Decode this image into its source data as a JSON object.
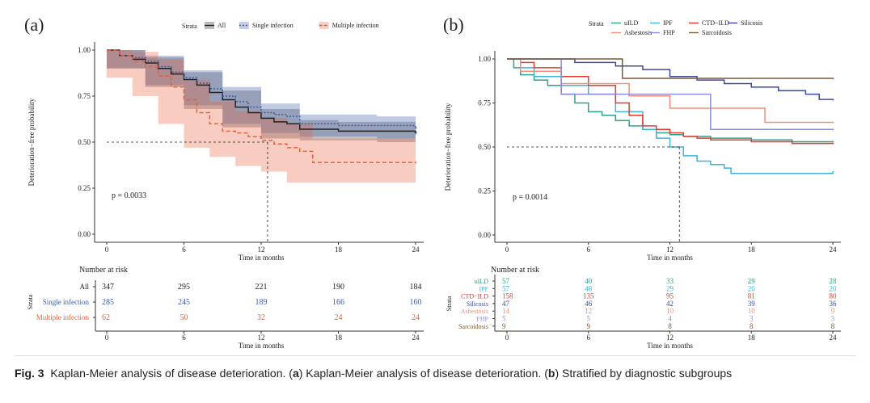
{
  "chart_data": [
    {
      "panel": "(a)",
      "type": "line",
      "subtype": "kaplan-meier",
      "xlabel": "Time in months",
      "ylabel": "Deterioration−free probability",
      "xlim": [
        0,
        24
      ],
      "ylim": [
        0,
        1
      ],
      "xticks": [
        "0",
        "6",
        "12",
        "18",
        "24"
      ],
      "yticks": [
        "0.00",
        "0.25",
        "0.50",
        "0.75",
        "1.00"
      ],
      "legend_title": "Strata",
      "pvalue": "p = 0.0033",
      "median_line": {
        "y": 0.5,
        "x": 12.5
      },
      "series": [
        {
          "name": "All",
          "color": "#222222",
          "dash": "solid",
          "points": [
            [
              0,
              1.0
            ],
            [
              1,
              0.97
            ],
            [
              2,
              0.95
            ],
            [
              3,
              0.93
            ],
            [
              4,
              0.9
            ],
            [
              5,
              0.87
            ],
            [
              6,
              0.84
            ],
            [
              7,
              0.81
            ],
            [
              8,
              0.77
            ],
            [
              9,
              0.73
            ],
            [
              10,
              0.69
            ],
            [
              11,
              0.66
            ],
            [
              12,
              0.63
            ],
            [
              13,
              0.61
            ],
            [
              14,
              0.6
            ],
            [
              15,
              0.57
            ],
            [
              16,
              0.57
            ],
            [
              18,
              0.56
            ],
            [
              20,
              0.56
            ],
            [
              22,
              0.56
            ],
            [
              24,
              0.55
            ]
          ],
          "ci": [
            [
              0,
              1.0,
              1.0
            ],
            [
              3,
              0.9,
              0.96
            ],
            [
              6,
              0.8,
              0.88
            ],
            [
              9,
              0.68,
              0.78
            ],
            [
              12,
              0.58,
              0.68
            ],
            [
              15,
              0.52,
              0.62
            ],
            [
              18,
              0.51,
              0.61
            ],
            [
              21,
              0.51,
              0.61
            ],
            [
              24,
              0.5,
              0.6
            ]
          ]
        },
        {
          "name": "Single infection",
          "color": "#3b5ba8",
          "dash": "dotted",
          "points": [
            [
              0,
              1.0
            ],
            [
              1,
              0.97
            ],
            [
              2,
              0.96
            ],
            [
              3,
              0.94
            ],
            [
              4,
              0.91
            ],
            [
              5,
              0.88
            ],
            [
              6,
              0.85
            ],
            [
              7,
              0.82
            ],
            [
              8,
              0.79
            ],
            [
              9,
              0.75
            ],
            [
              10,
              0.72
            ],
            [
              11,
              0.69
            ],
            [
              12,
              0.66
            ],
            [
              13,
              0.65
            ],
            [
              14,
              0.64
            ],
            [
              15,
              0.6
            ],
            [
              16,
              0.6
            ],
            [
              18,
              0.59
            ],
            [
              20,
              0.59
            ],
            [
              22,
              0.59
            ],
            [
              24,
              0.58
            ]
          ],
          "ci": [
            [
              0,
              1.0,
              1.0
            ],
            [
              3,
              0.9,
              0.97
            ],
            [
              6,
              0.81,
              0.89
            ],
            [
              9,
              0.7,
              0.8
            ],
            [
              12,
              0.6,
              0.71
            ],
            [
              15,
              0.55,
              0.65
            ],
            [
              18,
              0.53,
              0.65
            ],
            [
              21,
              0.53,
              0.64
            ],
            [
              24,
              0.52,
              0.63
            ]
          ]
        },
        {
          "name": "Multiple infection",
          "color": "#e8603c",
          "dash": "dashed",
          "points": [
            [
              0,
              1.0
            ],
            [
              1,
              0.97
            ],
            [
              2,
              0.94
            ],
            [
              3,
              0.91
            ],
            [
              4,
              0.86
            ],
            [
              5,
              0.8
            ],
            [
              6,
              0.73
            ],
            [
              7,
              0.66
            ],
            [
              8,
              0.6
            ],
            [
              9,
              0.56
            ],
            [
              10,
              0.55
            ],
            [
              11,
              0.53
            ],
            [
              12,
              0.51
            ],
            [
              13,
              0.49
            ],
            [
              14,
              0.47
            ],
            [
              15,
              0.45
            ],
            [
              16,
              0.39
            ],
            [
              18,
              0.39
            ],
            [
              20,
              0.39
            ],
            [
              22,
              0.39
            ],
            [
              24,
              0.39
            ]
          ],
          "ci": [
            [
              0,
              1.0,
              1.0
            ],
            [
              2,
              0.85,
              0.99
            ],
            [
              4,
              0.75,
              0.95
            ],
            [
              6,
              0.6,
              0.84
            ],
            [
              8,
              0.47,
              0.72
            ],
            [
              10,
              0.42,
              0.67
            ],
            [
              12,
              0.37,
              0.63
            ],
            [
              14,
              0.34,
              0.6
            ],
            [
              16,
              0.28,
              0.52
            ],
            [
              20,
              0.28,
              0.52
            ],
            [
              24,
              0.28,
              0.52
            ]
          ]
        }
      ],
      "risk_table": {
        "title": "Number at risk",
        "strata_label": "Strata",
        "times": [
          "0",
          "6",
          "12",
          "18",
          "24"
        ],
        "rows": [
          {
            "label": "All",
            "color": "#222222",
            "values": [
              "347",
              "295",
              "221",
              "190",
              "184"
            ]
          },
          {
            "label": "Single infection",
            "color": "#3b5ba8",
            "values": [
              "285",
              "245",
              "189",
              "166",
              "160"
            ]
          },
          {
            "label": "Multiple infection",
            "color": "#e8603c",
            "values": [
              "62",
              "50",
              "32",
              "24",
              "24"
            ]
          }
        ],
        "xlabel": "Time in months"
      }
    },
    {
      "panel": "(b)",
      "type": "line",
      "subtype": "kaplan-meier",
      "xlabel": "Time in months",
      "ylabel": "Deterioration−free probability",
      "xlim": [
        0,
        24
      ],
      "ylim": [
        0,
        1
      ],
      "xticks": [
        "0",
        "6",
        "12",
        "18",
        "24"
      ],
      "yticks": [
        "0.00",
        "0.25",
        "0.50",
        "0.75",
        "1.00"
      ],
      "legend_title": "Strata",
      "pvalue": "p = 0.0014",
      "median_line": {
        "y": 0.5,
        "x": 12.7
      },
      "series": [
        {
          "name": "uILD",
          "color": "#2aa389",
          "points": [
            [
              0,
              1.0
            ],
            [
              0.5,
              0.95
            ],
            [
              1,
              0.91
            ],
            [
              2,
              0.88
            ],
            [
              3,
              0.85
            ],
            [
              4,
              0.8
            ],
            [
              5,
              0.75
            ],
            [
              6,
              0.7
            ],
            [
              7,
              0.68
            ],
            [
              8,
              0.65
            ],
            [
              9,
              0.62
            ],
            [
              10,
              0.6
            ],
            [
              11,
              0.58
            ],
            [
              12,
              0.57
            ],
            [
              13,
              0.56
            ],
            [
              15,
              0.55
            ],
            [
              18,
              0.54
            ],
            [
              21,
              0.53
            ],
            [
              24,
              0.53
            ]
          ]
        },
        {
          "name": "IPF",
          "color": "#3cb4d6",
          "points": [
            [
              0,
              1.0
            ],
            [
              1,
              0.95
            ],
            [
              2,
              0.9
            ],
            [
              4,
              0.85
            ],
            [
              6,
              0.8
            ],
            [
              8,
              0.7
            ],
            [
              10,
              0.6
            ],
            [
              11,
              0.55
            ],
            [
              12,
              0.5
            ],
            [
              13,
              0.45
            ],
            [
              14,
              0.42
            ],
            [
              15,
              0.4
            ],
            [
              16,
              0.38
            ],
            [
              16.5,
              0.35
            ],
            [
              18,
              0.35
            ],
            [
              20,
              0.35
            ],
            [
              22,
              0.35
            ],
            [
              24,
              0.36
            ]
          ]
        },
        {
          "name": "CTD−ILD",
          "color": "#e23b2e",
          "points": [
            [
              0,
              1.0
            ],
            [
              1,
              0.98
            ],
            [
              2,
              0.95
            ],
            [
              4,
              0.9
            ],
            [
              6,
              0.85
            ],
            [
              8,
              0.75
            ],
            [
              9,
              0.68
            ],
            [
              10,
              0.62
            ],
            [
              11,
              0.6
            ],
            [
              12,
              0.58
            ],
            [
              13,
              0.56
            ],
            [
              14,
              0.55
            ],
            [
              15,
              0.54
            ],
            [
              18,
              0.53
            ],
            [
              21,
              0.52
            ],
            [
              24,
              0.52
            ]
          ]
        },
        {
          "name": "Silicosis",
          "color": "#3e4a96",
          "points": [
            [
              0,
              1.0
            ],
            [
              5,
              0.98
            ],
            [
              8,
              0.96
            ],
            [
              10,
              0.94
            ],
            [
              12,
              0.9
            ],
            [
              14,
              0.88
            ],
            [
              16,
              0.86
            ],
            [
              18,
              0.84
            ],
            [
              20,
              0.82
            ],
            [
              22,
              0.8
            ],
            [
              23,
              0.77
            ],
            [
              24,
              0.77
            ]
          ]
        },
        {
          "name": "Asbestosis",
          "color": "#f0907a",
          "points": [
            [
              0,
              1.0
            ],
            [
              1,
              0.93
            ],
            [
              3,
              0.93
            ],
            [
              4,
              0.86
            ],
            [
              6,
              0.86
            ],
            [
              8,
              0.86
            ],
            [
              9,
              0.79
            ],
            [
              10,
              0.79
            ],
            [
              12,
              0.72
            ],
            [
              14,
              0.72
            ],
            [
              16,
              0.72
            ],
            [
              18,
              0.72
            ],
            [
              19,
              0.64
            ],
            [
              22,
              0.64
            ],
            [
              23,
              0.64
            ],
            [
              24,
              0.64
            ]
          ]
        },
        {
          "name": "FHP",
          "color": "#8a8ed8",
          "points": [
            [
              0,
              1.0
            ],
            [
              2,
              1.0
            ],
            [
              4,
              0.8
            ],
            [
              6,
              0.8
            ],
            [
              8,
              0.8
            ],
            [
              10,
              0.8
            ],
            [
              12,
              0.8
            ],
            [
              14,
              0.8
            ],
            [
              15,
              0.6
            ],
            [
              18,
              0.6
            ],
            [
              20,
              0.6
            ],
            [
              22,
              0.6
            ],
            [
              24,
              0.6
            ]
          ]
        },
        {
          "name": "Sarcoidosis",
          "color": "#7a5a3a",
          "points": [
            [
              0,
              1.0
            ],
            [
              4,
              1.0
            ],
            [
              8,
              1.0
            ],
            [
              8.5,
              0.89
            ],
            [
              12,
              0.89
            ],
            [
              16,
              0.89
            ],
            [
              20,
              0.89
            ],
            [
              24,
              0.89
            ]
          ]
        }
      ],
      "risk_table": {
        "title": "Number at risk",
        "strata_label": "Strata",
        "times": [
          "0",
          "6",
          "12",
          "18",
          "24"
        ],
        "rows": [
          {
            "label": "uILD",
            "color": "#2aa389",
            "values": [
              "57",
              "40",
              "33",
              "29",
              "28"
            ]
          },
          {
            "label": "IPF",
            "color": "#3cb4d6",
            "values": [
              "57",
              "48",
              "29",
              "20",
              "20"
            ]
          },
          {
            "label": "CTD−ILD",
            "color": "#e23b2e",
            "values": [
              "158",
              "135",
              "95",
              "81",
              "80"
            ]
          },
          {
            "label": "Silicosis",
            "color": "#3e4a96",
            "values": [
              "47",
              "46",
              "42",
              "39",
              "36"
            ]
          },
          {
            "label": "Asbestosis",
            "color": "#f0907a",
            "values": [
              "14",
              "12",
              "10",
              "10",
              "9"
            ]
          },
          {
            "label": "FHP",
            "color": "#8a8ed8",
            "values": [
              "5",
              "5",
              "4",
              "3",
              "3"
            ]
          },
          {
            "label": "Sarcoidosis",
            "color": "#7a5a3a",
            "values": [
              "9",
              "9",
              "8",
              "8",
              "8"
            ]
          }
        ],
        "xlabel": "Time in months"
      }
    }
  ],
  "caption": {
    "fig_label": "Fig. 3",
    "text_1": "Kaplan-Meier analysis of disease deterioration. (",
    "a": "a",
    "text_2": ") Kaplan-Meier analysis of disease deterioration. (",
    "b": "b",
    "text_3": ") Stratified by diagnostic subgroups"
  }
}
